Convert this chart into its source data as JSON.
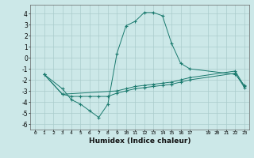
{
  "xlabel": "Humidex (Indice chaleur)",
  "bg_color": "#cce8e8",
  "grid_color": "#aacccc",
  "line_color": "#1a7a6e",
  "xlim": [
    -0.5,
    23.5
  ],
  "ylim": [
    -6.5,
    4.8
  ],
  "xticks": [
    0,
    1,
    2,
    3,
    4,
    5,
    6,
    7,
    8,
    9,
    10,
    11,
    12,
    13,
    14,
    15,
    16,
    17,
    19,
    20,
    21,
    22,
    23
  ],
  "yticks": [
    -6,
    -5,
    -4,
    -3,
    -2,
    -1,
    0,
    1,
    2,
    3,
    4
  ],
  "series": [
    {
      "x": [
        1,
        3,
        4,
        5,
        6,
        7,
        8,
        9,
        10,
        11,
        12,
        13,
        14,
        15,
        16,
        17,
        22,
        23
      ],
      "y": [
        -1.5,
        -2.8,
        -3.8,
        -4.2,
        -4.8,
        -5.4,
        -4.2,
        0.4,
        2.9,
        3.3,
        4.1,
        4.1,
        3.8,
        1.3,
        -0.5,
        -1.0,
        -1.5,
        -2.5
      ]
    },
    {
      "x": [
        1,
        3,
        9,
        10,
        11,
        12,
        13,
        14,
        15,
        16,
        17,
        22,
        23
      ],
      "y": [
        -1.5,
        -3.3,
        -3.0,
        -2.8,
        -2.6,
        -2.5,
        -2.4,
        -2.3,
        -2.2,
        -2.0,
        -1.8,
        -1.2,
        -2.6
      ]
    },
    {
      "x": [
        1,
        3,
        4,
        5,
        6,
        7,
        8,
        9,
        10,
        11,
        12,
        13,
        14,
        15,
        16,
        17,
        22,
        23
      ],
      "y": [
        -1.5,
        -3.3,
        -3.5,
        -3.5,
        -3.5,
        -3.5,
        -3.5,
        -3.2,
        -3.0,
        -2.8,
        -2.7,
        -2.6,
        -2.5,
        -2.4,
        -2.2,
        -2.0,
        -1.4,
        -2.7
      ]
    }
  ]
}
